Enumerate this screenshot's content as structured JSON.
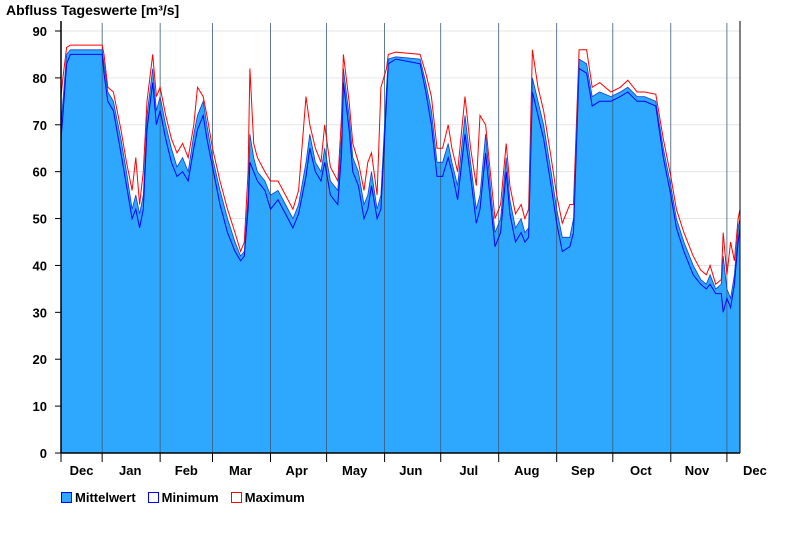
{
  "chart_data": {
    "type": "area",
    "title": "Abfluss Tageswerte [m³/s]",
    "xlabel": "",
    "ylabel": "Abfluss Tageswerte [m³/s]",
    "ylim": [
      0,
      90
    ],
    "yticks": [
      0,
      10,
      20,
      30,
      40,
      50,
      60,
      70,
      80,
      90
    ],
    "xlim_days": [
      0,
      363
    ],
    "month_boundaries_days": [
      22,
      53,
      81,
      112,
      142,
      173,
      203,
      234,
      265,
      295,
      326,
      356
    ],
    "month_labels": [
      "Dec",
      "Jan",
      "Feb",
      "Mar",
      "Apr",
      "May",
      "Jun",
      "Jul",
      "Aug",
      "Sep",
      "Oct",
      "Nov",
      "Dec"
    ],
    "month_label_days": [
      11,
      37,
      67,
      96,
      126,
      157,
      187,
      218,
      249,
      279,
      310,
      340,
      371
    ],
    "grid": true,
    "legend": {
      "placement": "bottom-left",
      "items": [
        {
          "name": "Mittelwert",
          "color": "#2ea8ff",
          "border": "#0000ff"
        },
        {
          "name": "Minimum",
          "color": "#0000ff"
        },
        {
          "name": "Maximum",
          "color": "#ff0000"
        }
      ]
    },
    "columns": [
      "day",
      "mean",
      "min",
      "max"
    ],
    "points": [
      [
        0,
        70,
        67,
        76
      ],
      [
        1,
        75,
        72,
        80
      ],
      [
        3,
        85,
        83,
        86.5
      ],
      [
        5,
        86,
        85,
        87
      ],
      [
        16,
        86,
        85,
        87
      ],
      [
        22,
        86,
        85,
        87
      ],
      [
        23,
        83,
        81,
        85
      ],
      [
        25,
        77,
        75,
        78
      ],
      [
        28,
        75,
        73,
        77
      ],
      [
        32,
        67,
        64,
        69
      ],
      [
        35,
        60,
        57,
        62
      ],
      [
        38,
        52,
        50,
        56
      ],
      [
        40,
        55,
        52,
        63
      ],
      [
        42,
        51,
        48,
        53
      ],
      [
        44,
        55,
        52,
        60
      ],
      [
        46,
        72,
        69,
        75
      ],
      [
        49,
        82,
        79,
        85
      ],
      [
        51,
        73,
        70,
        76
      ],
      [
        53,
        76,
        73,
        78
      ],
      [
        56,
        70,
        67,
        72
      ],
      [
        59,
        65,
        62,
        67
      ],
      [
        62,
        61,
        59,
        64
      ],
      [
        65,
        63,
        60,
        66
      ],
      [
        68,
        60,
        58,
        63
      ],
      [
        71,
        68,
        65,
        70
      ],
      [
        73,
        72,
        69,
        78
      ],
      [
        76,
        75,
        72,
        76
      ],
      [
        78,
        70,
        67,
        72
      ],
      [
        81,
        63,
        61,
        65
      ],
      [
        85,
        56,
        53,
        58
      ],
      [
        89,
        50,
        47,
        52
      ],
      [
        93,
        45,
        43,
        47
      ],
      [
        96,
        42,
        41,
        43
      ],
      [
        98,
        43,
        42,
        45
      ],
      [
        100,
        55,
        52,
        60
      ],
      [
        101,
        68,
        62,
        82
      ],
      [
        103,
        63,
        60,
        66
      ],
      [
        105,
        60,
        58,
        63
      ],
      [
        109,
        58,
        56,
        60
      ],
      [
        112,
        55,
        52,
        58
      ],
      [
        116,
        56,
        54,
        58
      ],
      [
        120,
        53,
        51,
        55
      ],
      [
        124,
        50,
        48,
        52
      ],
      [
        127,
        53,
        51,
        56
      ],
      [
        131,
        62,
        59,
        76
      ],
      [
        133,
        68,
        65,
        70
      ],
      [
        136,
        62,
        60,
        65
      ],
      [
        139,
        60,
        58,
        62
      ],
      [
        141,
        65,
        62,
        70
      ],
      [
        144,
        58,
        55,
        61
      ],
      [
        148,
        56,
        53,
        58
      ],
      [
        150,
        68,
        64,
        72
      ],
      [
        151,
        82,
        79,
        85
      ],
      [
        154,
        72,
        69,
        75
      ],
      [
        156,
        63,
        60,
        66
      ],
      [
        159,
        60,
        57,
        62
      ],
      [
        162,
        53,
        50,
        56
      ],
      [
        164,
        55,
        52,
        62
      ],
      [
        166,
        60,
        57,
        64
      ],
      [
        169,
        52,
        50,
        55
      ],
      [
        171,
        55,
        52,
        78
      ],
      [
        174,
        78,
        75,
        82
      ],
      [
        175,
        84,
        83,
        85
      ],
      [
        179,
        84.5,
        84,
        85.5
      ],
      [
        192,
        84,
        83,
        85
      ],
      [
        195,
        79,
        77,
        81
      ],
      [
        198,
        73,
        70,
        76
      ],
      [
        201,
        62,
        59,
        65
      ],
      [
        204,
        62,
        59,
        65
      ],
      [
        207,
        66,
        63,
        70
      ],
      [
        209,
        62,
        60,
        65
      ],
      [
        212,
        57,
        54,
        60
      ],
      [
        216,
        72,
        68,
        76
      ],
      [
        219,
        62,
        59,
        65
      ],
      [
        222,
        52,
        49,
        57
      ],
      [
        224,
        55,
        52,
        72
      ],
      [
        227,
        68,
        64,
        70
      ],
      [
        230,
        55,
        52,
        58
      ],
      [
        232,
        47,
        44,
        50
      ],
      [
        235,
        50,
        47,
        53
      ],
      [
        238,
        63,
        60,
        66
      ],
      [
        240,
        54,
        51,
        57
      ],
      [
        243,
        48,
        45,
        51
      ],
      [
        246,
        50,
        47,
        53
      ],
      [
        248,
        47,
        45,
        50
      ],
      [
        250,
        48,
        46,
        52
      ],
      [
        252,
        80,
        77,
        86
      ],
      [
        255,
        75,
        72,
        78
      ],
      [
        258,
        70,
        67,
        73
      ],
      [
        262,
        60,
        57,
        63
      ],
      [
        265,
        52,
        49,
        55
      ],
      [
        268,
        46,
        43,
        49
      ],
      [
        272,
        46,
        44,
        53
      ],
      [
        274,
        50,
        47,
        53
      ],
      [
        277,
        84,
        82,
        86
      ],
      [
        281,
        83,
        81,
        86
      ],
      [
        284,
        76,
        74,
        78
      ],
      [
        288,
        77,
        75,
        79
      ],
      [
        294,
        76,
        75,
        77
      ],
      [
        299,
        77,
        76,
        78
      ],
      [
        303,
        78,
        77,
        79.5
      ],
      [
        308,
        76,
        75,
        77
      ],
      [
        312,
        76,
        75,
        77
      ],
      [
        318,
        75,
        74,
        76.5
      ],
      [
        322,
        65,
        63,
        67
      ],
      [
        326,
        57,
        55,
        59
      ],
      [
        329,
        50,
        48,
        52
      ],
      [
        333,
        45,
        43,
        47
      ],
      [
        338,
        40,
        38,
        42
      ],
      [
        342,
        37,
        36,
        39
      ],
      [
        345,
        36,
        35,
        38
      ],
      [
        347,
        38,
        36,
        40
      ],
      [
        350,
        35,
        34,
        36
      ],
      [
        353,
        36,
        34,
        37
      ],
      [
        354,
        42,
        30,
        47
      ],
      [
        356,
        35,
        33,
        38
      ],
      [
        358,
        33,
        31,
        45
      ],
      [
        360,
        38,
        36,
        41
      ],
      [
        362,
        48,
        45,
        50
      ],
      [
        363,
        50,
        48,
        52
      ]
    ]
  }
}
